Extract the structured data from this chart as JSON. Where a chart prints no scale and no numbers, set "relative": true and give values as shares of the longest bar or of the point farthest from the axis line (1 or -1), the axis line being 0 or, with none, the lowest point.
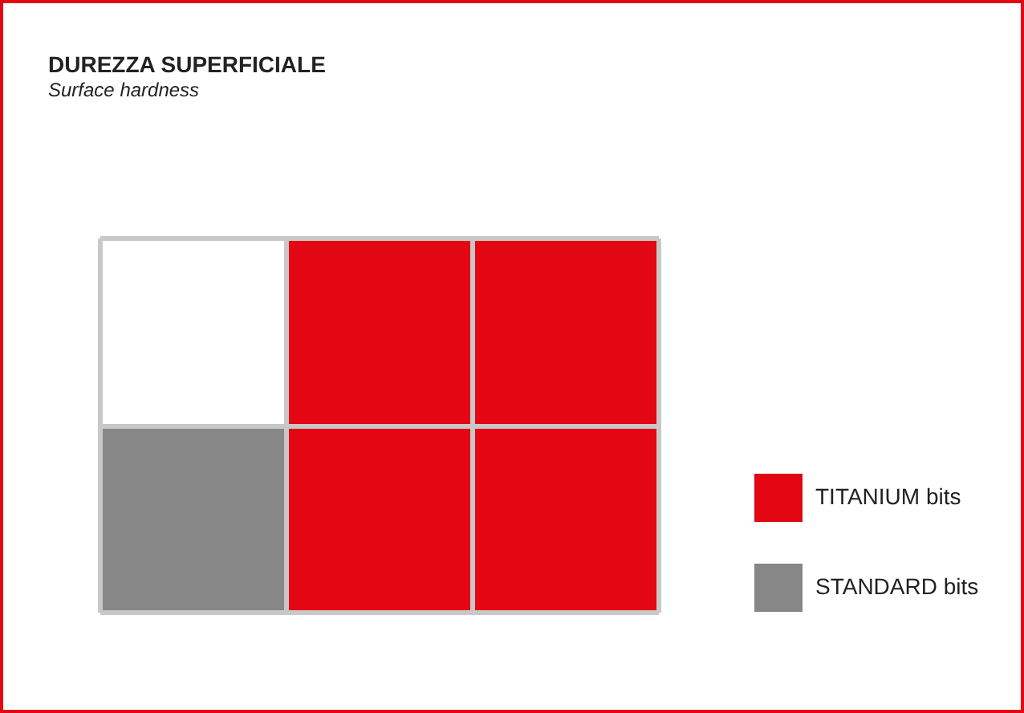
{
  "chart_data": {
    "type": "bar",
    "title": "DUREZZA SUPERFICIALE",
    "subtitle": "Surface hardness",
    "categories": [
      null,
      null,
      null
    ],
    "series": [
      {
        "name": "TITANIUM bits",
        "color": "#e30613",
        "values": [
          0,
          1,
          1
        ]
      },
      {
        "name": "STANDARD bits",
        "color": "#878787",
        "values": [
          0.5,
          0,
          0
        ]
      }
    ],
    "stacked": true,
    "relative": true,
    "grid": true,
    "legend": "right"
  }
}
